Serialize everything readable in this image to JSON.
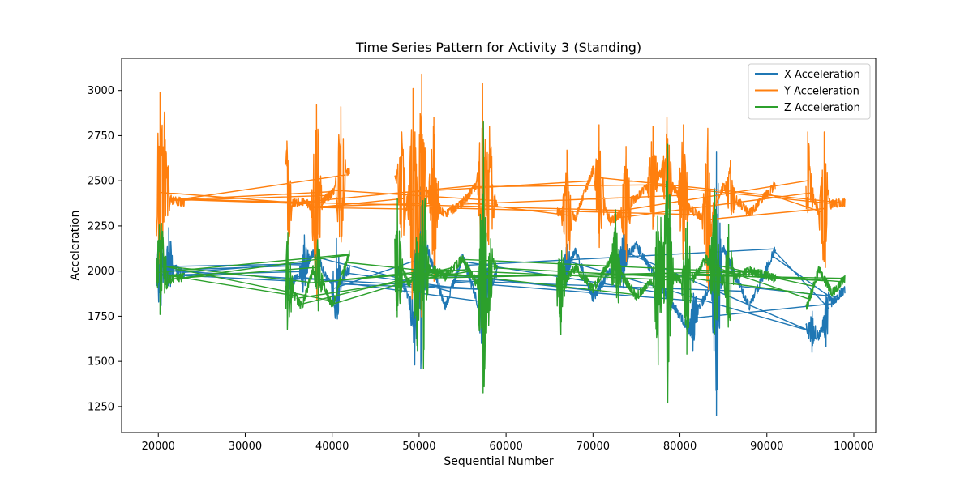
{
  "chart_data": {
    "type": "line",
    "title": "Time Series Pattern for Activity 3 (Standing)",
    "xlabel": "Sequential Number",
    "ylabel": "Acceleration",
    "xlim": [
      15780,
      102520
    ],
    "ylim": [
      1106,
      3178
    ],
    "xticks": [
      20000,
      30000,
      40000,
      50000,
      60000,
      70000,
      80000,
      90000,
      100000
    ],
    "yticks": [
      1250,
      1500,
      1750,
      2000,
      2250,
      2500,
      2750,
      3000
    ],
    "grid": false,
    "legend_position": "top-right",
    "segments": [
      {
        "start": 19800,
        "end": 23000
      },
      {
        "start": 34600,
        "end": 42000
      },
      {
        "start": 47200,
        "end": 59000
      },
      {
        "start": 65800,
        "end": 91000
      },
      {
        "start": 94500,
        "end": 99000
      }
    ],
    "series": [
      {
        "name": "X Acceleration",
        "color": "#1f77b4",
        "base": [
          [
            19800,
            2000
          ],
          [
            20400,
            1960
          ],
          [
            21000,
            2040
          ],
          [
            23000,
            1980
          ],
          [
            34600,
            1890
          ],
          [
            36500,
            2000
          ],
          [
            38000,
            2110
          ],
          [
            40000,
            1900
          ],
          [
            42000,
            2010
          ],
          [
            47200,
            2050
          ],
          [
            49000,
            1820
          ],
          [
            51000,
            2120
          ],
          [
            53000,
            1800
          ],
          [
            55000,
            2080
          ],
          [
            57000,
            1780
          ],
          [
            59000,
            2000
          ],
          [
            65800,
            1920
          ],
          [
            68000,
            2110
          ],
          [
            70000,
            1850
          ],
          [
            72000,
            2000
          ],
          [
            75000,
            2140
          ],
          [
            78000,
            1900
          ],
          [
            81000,
            1680
          ],
          [
            83000,
            1870
          ],
          [
            85000,
            2120
          ],
          [
            88000,
            1800
          ],
          [
            91000,
            2130
          ],
          [
            94500,
            1690
          ],
          [
            96000,
            1640
          ],
          [
            97500,
            1830
          ],
          [
            99000,
            1900
          ]
        ],
        "peaks": [
          [
            20200,
            2220
          ],
          [
            21200,
            2240
          ],
          [
            36800,
            2200
          ],
          [
            40500,
            2180
          ],
          [
            49500,
            1480
          ],
          [
            50200,
            1460
          ],
          [
            57500,
            2220
          ],
          [
            67000,
            2150
          ],
          [
            73500,
            2250
          ],
          [
            81500,
            1560
          ],
          [
            84200,
            1200
          ],
          [
            95200,
            1550
          ],
          [
            96800,
            1580
          ]
        ]
      },
      {
        "name": "Y Acceleration",
        "color": "#ff7f0e",
        "base": [
          [
            19800,
            2390
          ],
          [
            20400,
            2480
          ],
          [
            21000,
            2400
          ],
          [
            23000,
            2380
          ],
          [
            34600,
            2370
          ],
          [
            36500,
            2390
          ],
          [
            38000,
            2350
          ],
          [
            40000,
            2430
          ],
          [
            42000,
            2560
          ],
          [
            47200,
            2540
          ],
          [
            49000,
            2330
          ],
          [
            51000,
            2430
          ],
          [
            53000,
            2310
          ],
          [
            55000,
            2380
          ],
          [
            57000,
            2500
          ],
          [
            59000,
            2360
          ],
          [
            65800,
            2330
          ],
          [
            68000,
            2300
          ],
          [
            70000,
            2560
          ],
          [
            72000,
            2270
          ],
          [
            75000,
            2410
          ],
          [
            78000,
            2550
          ],
          [
            81000,
            2350
          ],
          [
            83000,
            2280
          ],
          [
            85000,
            2470
          ],
          [
            88000,
            2320
          ],
          [
            91000,
            2480
          ],
          [
            94500,
            2530
          ],
          [
            96000,
            2320
          ],
          [
            97500,
            2370
          ],
          [
            99000,
            2380
          ]
        ],
        "peaks": [
          [
            20200,
            2990
          ],
          [
            20700,
            2880
          ],
          [
            34800,
            2720
          ],
          [
            38200,
            2920
          ],
          [
            41000,
            2910
          ],
          [
            48000,
            2770
          ],
          [
            49300,
            3010
          ],
          [
            50300,
            3090
          ],
          [
            51700,
            2850
          ],
          [
            57300,
            3040
          ],
          [
            58100,
            2800
          ],
          [
            67000,
            2670
          ],
          [
            70700,
            2810
          ],
          [
            73800,
            2690
          ],
          [
            76900,
            2800
          ],
          [
            78500,
            2850
          ],
          [
            80400,
            2810
          ],
          [
            83200,
            2790
          ],
          [
            85800,
            2610
          ],
          [
            94700,
            2770
          ],
          [
            96600,
            2770
          ]
        ]
      },
      {
        "name": "Z Acceleration",
        "color": "#2ca02c",
        "base": [
          [
            19800,
            1990
          ],
          [
            20400,
            2060
          ],
          [
            21000,
            1950
          ],
          [
            23000,
            1970
          ],
          [
            34600,
            1950
          ],
          [
            36500,
            1800
          ],
          [
            38000,
            2040
          ],
          [
            40000,
            1810
          ],
          [
            42000,
            2100
          ],
          [
            47200,
            2080
          ],
          [
            49000,
            1920
          ],
          [
            51000,
            2030
          ],
          [
            53000,
            1970
          ],
          [
            55000,
            2070
          ],
          [
            57000,
            1900
          ],
          [
            59000,
            2050
          ],
          [
            65800,
            1890
          ],
          [
            68000,
            2020
          ],
          [
            70000,
            1900
          ],
          [
            72000,
            2060
          ],
          [
            75000,
            1860
          ],
          [
            78000,
            2010
          ],
          [
            81000,
            1920
          ],
          [
            83000,
            2070
          ],
          [
            85000,
            1940
          ],
          [
            88000,
            2000
          ],
          [
            91000,
            1960
          ],
          [
            94500,
            1790
          ],
          [
            96000,
            2010
          ],
          [
            97500,
            1880
          ],
          [
            99000,
            1960
          ]
        ],
        "peaks": [
          [
            20200,
            1760
          ],
          [
            20500,
            2220
          ],
          [
            34900,
            2210
          ],
          [
            38400,
            1780
          ],
          [
            47500,
            2400
          ],
          [
            49800,
            1560
          ],
          [
            50500,
            1460
          ],
          [
            57400,
            2830
          ],
          [
            58000,
            1700
          ],
          [
            66300,
            1650
          ],
          [
            72600,
            2340
          ],
          [
            77500,
            1480
          ],
          [
            78600,
            1270
          ],
          [
            80800,
            1540
          ],
          [
            84000,
            2450
          ],
          [
            85600,
            2260
          ],
          [
            95200,
            1900
          ]
        ]
      }
    ]
  }
}
